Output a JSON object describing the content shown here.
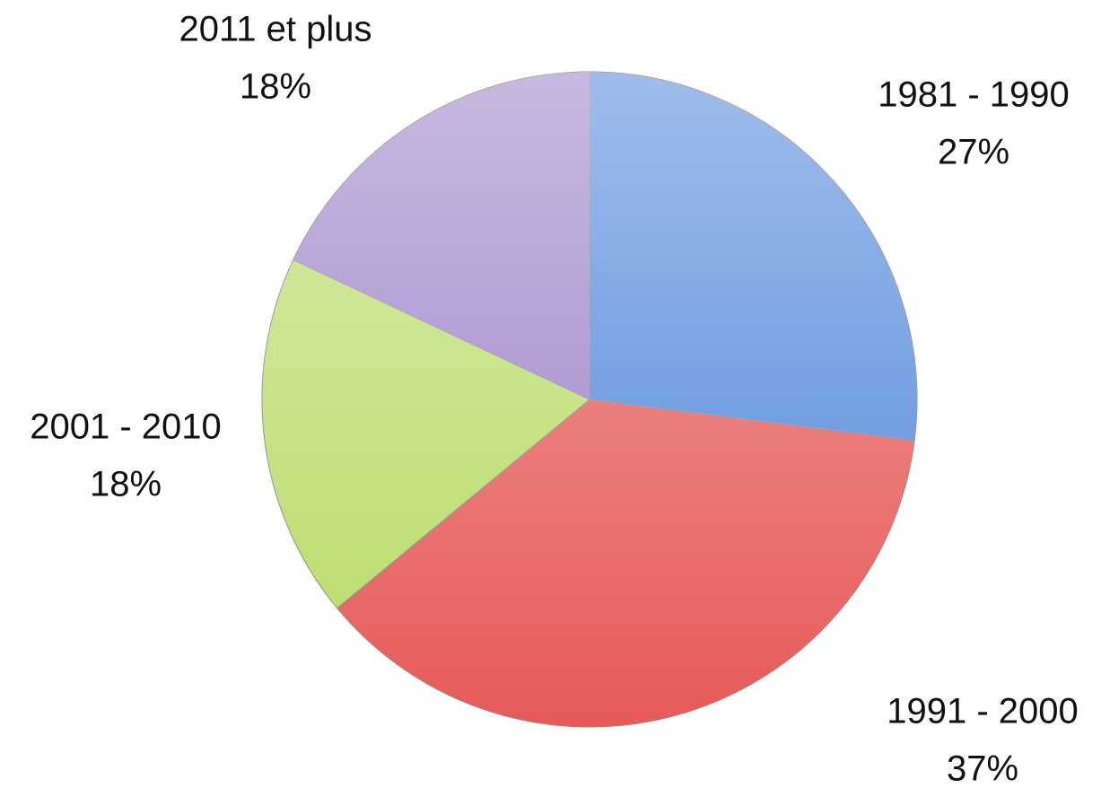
{
  "chart_data": {
    "type": "pie",
    "categories": [
      "1981 - 1990",
      "1991 - 2000",
      "2001 - 2010",
      "2011 et plus"
    ],
    "values": [
      27,
      37,
      18,
      18
    ],
    "value_labels": [
      "27%",
      "37%",
      "18%",
      "18%"
    ],
    "colors": [
      "#4f86db",
      "#e65a58",
      "#b8dc66",
      "#9a7fc8"
    ]
  }
}
